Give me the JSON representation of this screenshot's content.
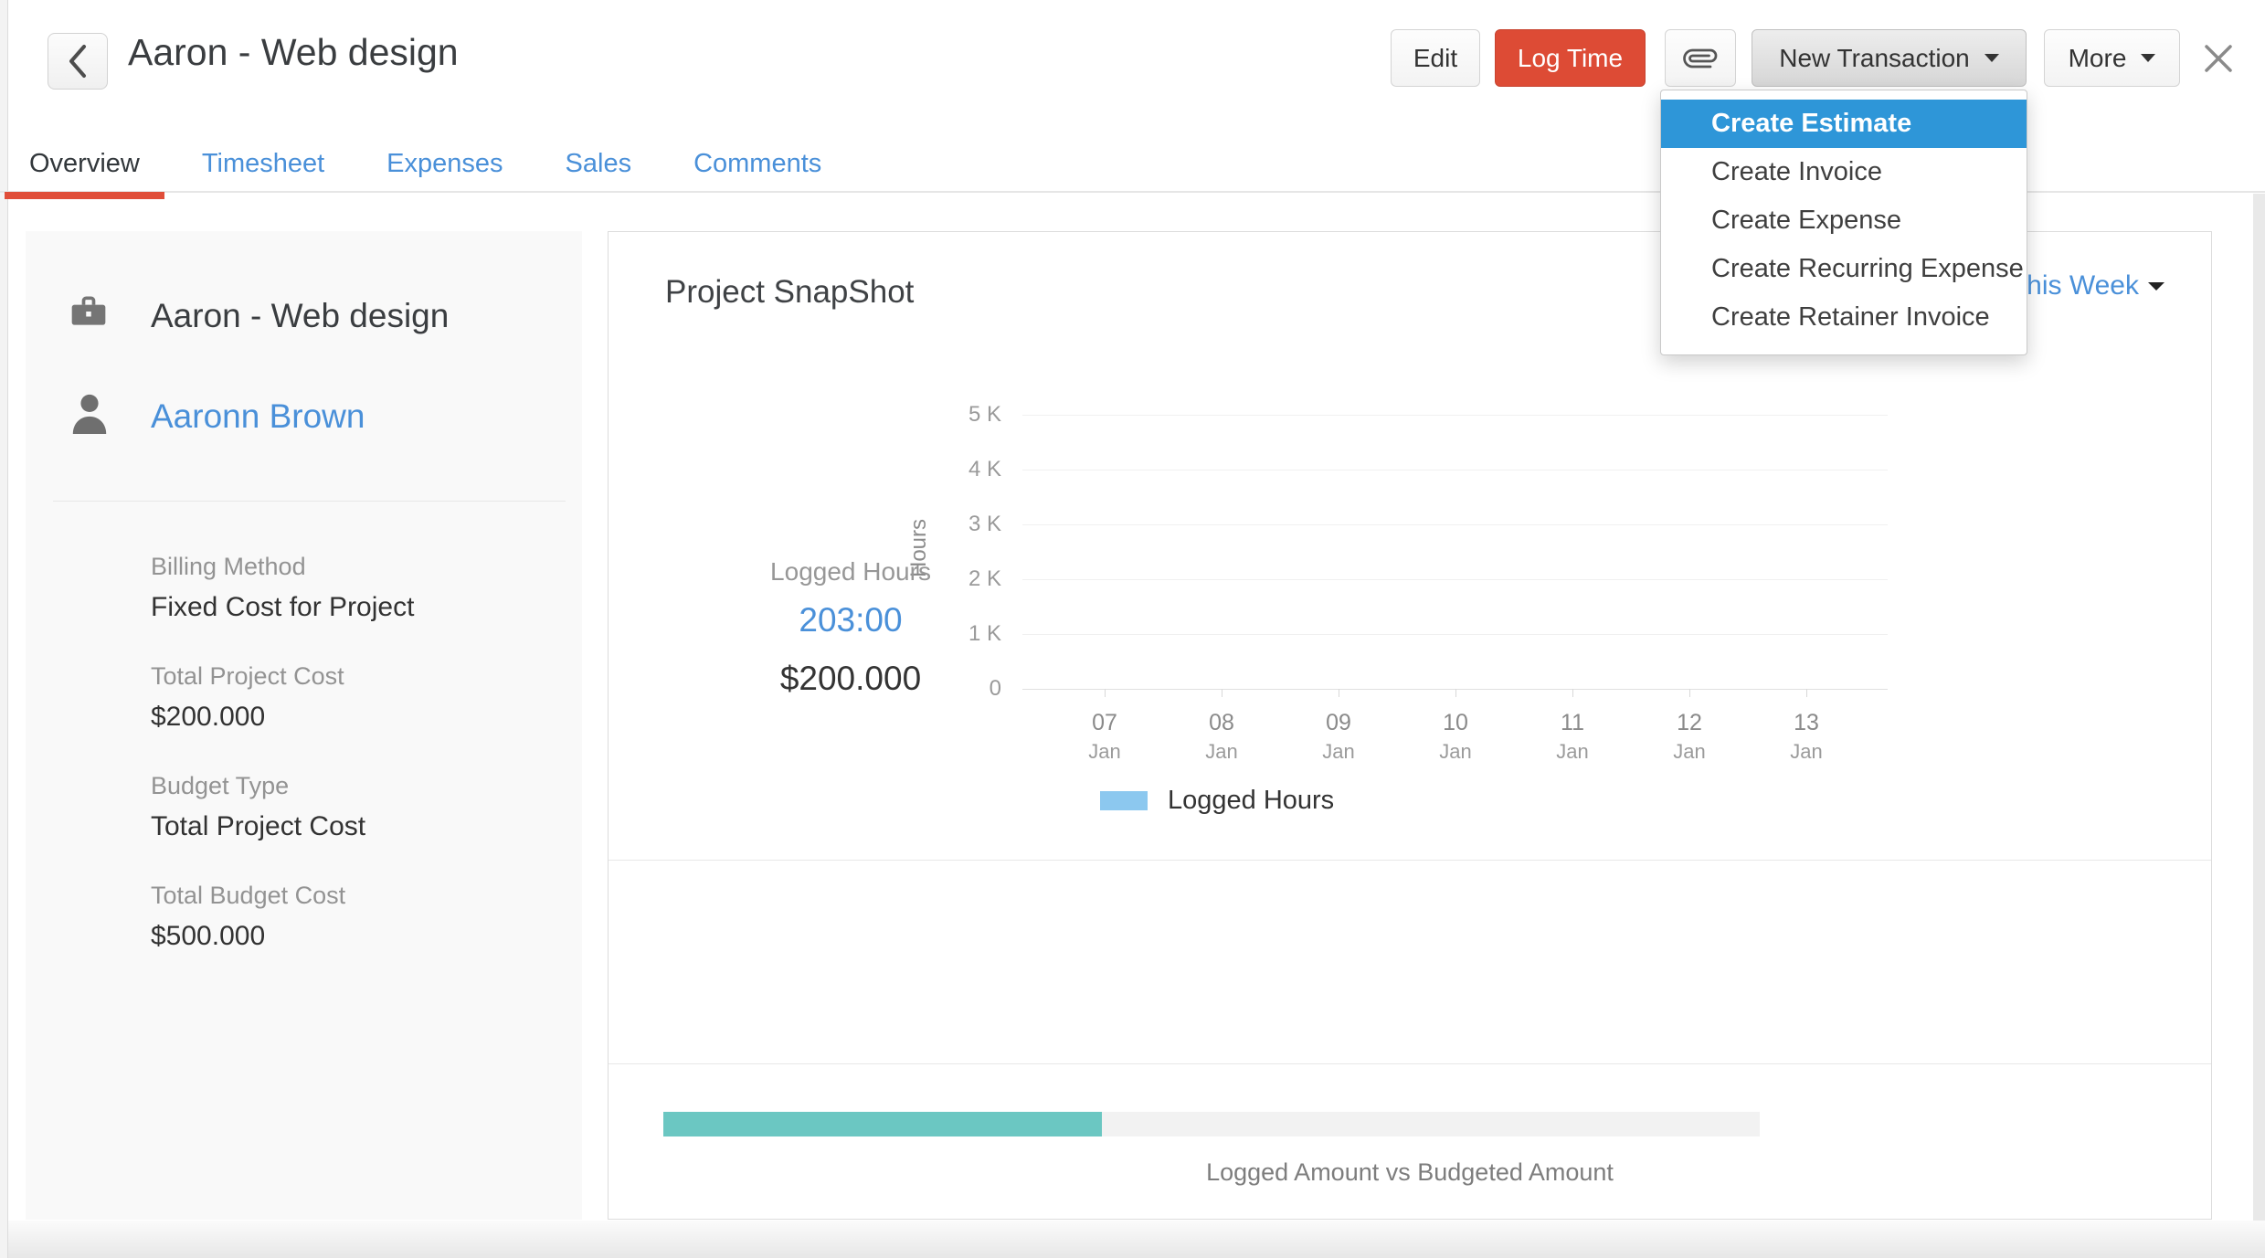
{
  "header": {
    "title": "Aaron - Web design",
    "buttons": {
      "edit": "Edit",
      "log_time": "Log Time",
      "new_transaction": "New Transaction",
      "more": "More"
    }
  },
  "menu": {
    "items": [
      {
        "label": "Create Estimate",
        "highlighted": true
      },
      {
        "label": "Create Invoice",
        "highlighted": false
      },
      {
        "label": "Create Expense",
        "highlighted": false
      },
      {
        "label": "Create Recurring Expense",
        "highlighted": false
      },
      {
        "label": "Create Retainer Invoice",
        "highlighted": false
      }
    ]
  },
  "tabs": [
    {
      "label": "Overview",
      "active": true
    },
    {
      "label": "Timesheet",
      "active": false
    },
    {
      "label": "Expenses",
      "active": false
    },
    {
      "label": "Sales",
      "active": false
    },
    {
      "label": "Comments",
      "active": false
    }
  ],
  "project_panel": {
    "project_name": "Aaron - Web design",
    "customer_name": "Aaronn Brown",
    "fields": [
      {
        "label": "Billing Method",
        "value": "Fixed Cost for Project"
      },
      {
        "label": "Total Project Cost",
        "value": "$200.000"
      },
      {
        "label": "Budget Type",
        "value": "Total Project Cost"
      },
      {
        "label": "Total Budget Cost",
        "value": "$500.000"
      }
    ]
  },
  "snapshot": {
    "title": "Project SnapShot",
    "period": "This Week",
    "legend": "Logged Hours",
    "summary": {
      "label": "Logged Hours",
      "hours": "203:00",
      "amount": "$200.000"
    },
    "progress": {
      "caption": "Logged Amount vs Budgeted Amount",
      "percent": 40
    }
  },
  "chart_data": {
    "type": "bar",
    "title": "Project SnapShot",
    "period": "This Week",
    "categories": [
      "07 Jan",
      "08 Jan",
      "09 Jan",
      "10 Jan",
      "11 Jan",
      "12 Jan",
      "13 Jan"
    ],
    "series": [
      {
        "name": "Logged Hours",
        "values": [
          0,
          0,
          0,
          0,
          0,
          0,
          0
        ]
      }
    ],
    "x_labels": [
      {
        "day": "07",
        "mon": "Jan"
      },
      {
        "day": "08",
        "mon": "Jan"
      },
      {
        "day": "09",
        "mon": "Jan"
      },
      {
        "day": "10",
        "mon": "Jan"
      },
      {
        "day": "11",
        "mon": "Jan"
      },
      {
        "day": "12",
        "mon": "Jan"
      },
      {
        "day": "13",
        "mon": "Jan"
      }
    ],
    "xlabel": "",
    "ylabel": "Hours",
    "ylim": [
      0,
      5000
    ],
    "ytick_labels": [
      "5 K",
      "4 K",
      "3 K",
      "2 K",
      "1 K",
      "0"
    ],
    "grid": true,
    "legend_position": "bottom"
  },
  "colors": {
    "accent_red": "#dd4b35",
    "tab_underline_red": "#e04e39",
    "link_blue": "#4a90d9",
    "menu_highlight_blue": "#2e96d8",
    "legend_blue": "#8cc8ef",
    "progress_teal": "#6bc7c2",
    "panel_bg": "#f9f9f9"
  }
}
